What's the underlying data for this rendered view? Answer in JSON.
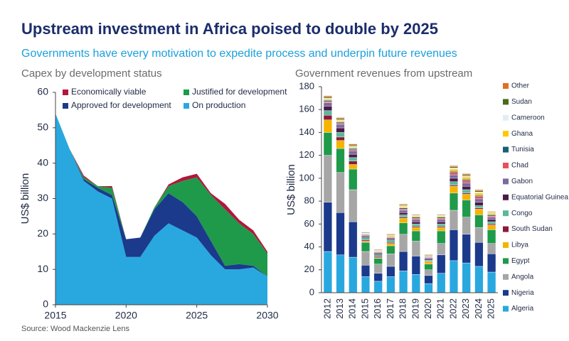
{
  "title": "Upstream investment in Africa poised to double by 2025",
  "subtitle": "Governments have every motivation to expedite process and underpin future revenues",
  "source": "Source: Wood Mackenzie Lens",
  "chart_data": [
    {
      "type": "area",
      "stacked": true,
      "title": "Capex by development status",
      "y_label": "US$ billion",
      "x": [
        2015,
        2016,
        2017,
        2018,
        2019,
        2020,
        2021,
        2022,
        2023,
        2024,
        2025,
        2026,
        2027,
        2028,
        2029,
        2030
      ],
      "xlim": [
        2015,
        2030
      ],
      "xticks": [
        2015,
        2020,
        2025,
        2030
      ],
      "ylim": [
        0,
        60
      ],
      "yticks": [
        0,
        10,
        20,
        30,
        40,
        50,
        60
      ],
      "series": [
        {
          "name": "On production",
          "color": "#29a8e0",
          "values": [
            54,
            44,
            35,
            32,
            30,
            13.5,
            13.5,
            19.5,
            23,
            21,
            19,
            14,
            10,
            10,
            10.5,
            8
          ]
        },
        {
          "name": "Approved for development",
          "color": "#1b3a8c",
          "values": [
            0,
            0,
            0.5,
            1,
            1,
            5,
            5.5,
            7.5,
            8.5,
            8,
            6,
            4,
            1,
            1.5,
            0.5,
            0
          ]
        },
        {
          "name": "Justified for development",
          "color": "#1e9a4a",
          "values": [
            0,
            0,
            0.5,
            0.5,
            2,
            0,
            0,
            0.5,
            2,
            6,
            11,
            13,
            16,
            11.5,
            9,
            6.5
          ]
        },
        {
          "name": "Economically viable",
          "color": "#b0173c",
          "values": [
            0,
            0,
            0.5,
            0,
            0.5,
            0,
            0,
            0,
            0.5,
            1,
            1,
            0.5,
            1.5,
            1,
            1,
            0.5
          ]
        }
      ]
    },
    {
      "type": "bar",
      "stacked": true,
      "title": "Government revenues from upstream",
      "y_label": "US$ billion",
      "categories": [
        "2012",
        "2013",
        "2014",
        "2015",
        "2016",
        "2017",
        "2018",
        "2019",
        "2020",
        "2021",
        "2022",
        "2023",
        "2024",
        "2025"
      ],
      "ylim": [
        0,
        180
      ],
      "yticks": [
        0,
        20,
        40,
        60,
        80,
        100,
        120,
        140,
        160,
        180
      ],
      "series": [
        {
          "name": "Algeria",
          "color": "#29a8e0",
          "values": [
            36,
            33,
            31,
            14,
            10,
            14,
            19,
            16,
            8,
            17,
            28,
            26,
            23,
            18
          ]
        },
        {
          "name": "Nigeria",
          "color": "#1b3a8c",
          "values": [
            43,
            37,
            31,
            10,
            7,
            9,
            17,
            16,
            7,
            16,
            27,
            25,
            21,
            16
          ]
        },
        {
          "name": "Angola",
          "color": "#a6a6a6",
          "values": [
            41,
            35,
            28,
            12,
            8,
            11,
            15,
            13,
            5,
            10,
            17,
            15,
            13,
            9
          ]
        },
        {
          "name": "Egypt",
          "color": "#1e9a4a",
          "values": [
            20,
            21,
            18,
            8,
            5,
            7,
            10,
            9,
            5,
            11,
            15,
            15,
            11,
            12
          ]
        },
        {
          "name": "Libya",
          "color": "#f5b400",
          "values": [
            11,
            7,
            4,
            1,
            0.5,
            2,
            4,
            3,
            2,
            3,
            6,
            5,
            5,
            4
          ]
        },
        {
          "name": "South Sudan",
          "color": "#8b1a3a",
          "values": [
            4,
            3,
            3,
            1,
            1,
            1,
            1,
            1,
            0.5,
            1,
            1,
            1,
            1,
            1
          ]
        },
        {
          "name": "Congo",
          "color": "#5bb89a",
          "values": [
            4,
            4,
            3,
            2,
            1.5,
            2,
            2,
            2,
            1,
            2,
            3,
            3,
            2,
            2
          ]
        },
        {
          "name": "Equatorial Guinea",
          "color": "#4a1a4a",
          "values": [
            4,
            4,
            3,
            1,
            1,
            1,
            2,
            2,
            1,
            2,
            3,
            3,
            3,
            2
          ]
        },
        {
          "name": "Gabon",
          "color": "#7b6aa0",
          "values": [
            3,
            3,
            3,
            1,
            1,
            1,
            2,
            2,
            1,
            2,
            3,
            3,
            3,
            2
          ]
        },
        {
          "name": "Chad",
          "color": "#e8505b",
          "values": [
            1,
            1,
            1,
            0.5,
            0.5,
            0.5,
            1,
            1,
            0.5,
            1,
            2,
            2,
            2,
            1
          ]
        },
        {
          "name": "Tunisia",
          "color": "#1a5e7a",
          "values": [
            1,
            1,
            1,
            0.5,
            0.5,
            0.5,
            1,
            1,
            0.5,
            1,
            1,
            1,
            1,
            1
          ]
        },
        {
          "name": "Ghana",
          "color": "#ffc800",
          "values": [
            1,
            1,
            1,
            0.5,
            0.5,
            1,
            1,
            1,
            0.5,
            1,
            2,
            2,
            2,
            1.5
          ]
        },
        {
          "name": "Cameroon",
          "color": "#e3ecf6",
          "values": [
            1,
            1,
            1,
            0.5,
            0.5,
            0.5,
            1,
            0.5,
            0.5,
            0.5,
            1,
            1,
            1,
            0.5
          ]
        },
        {
          "name": "Sudan",
          "color": "#4a6a1a",
          "values": [
            1,
            1,
            1,
            0.5,
            0.5,
            0.5,
            0.5,
            0.5,
            0.5,
            0.5,
            1,
            1,
            1,
            0.5
          ]
        },
        {
          "name": "Other",
          "color": "#e07020",
          "values": [
            1,
            1,
            1,
            0.5,
            0.5,
            0.5,
            1,
            0.5,
            0.5,
            0.5,
            1,
            1,
            1,
            0.5
          ]
        }
      ]
    }
  ]
}
